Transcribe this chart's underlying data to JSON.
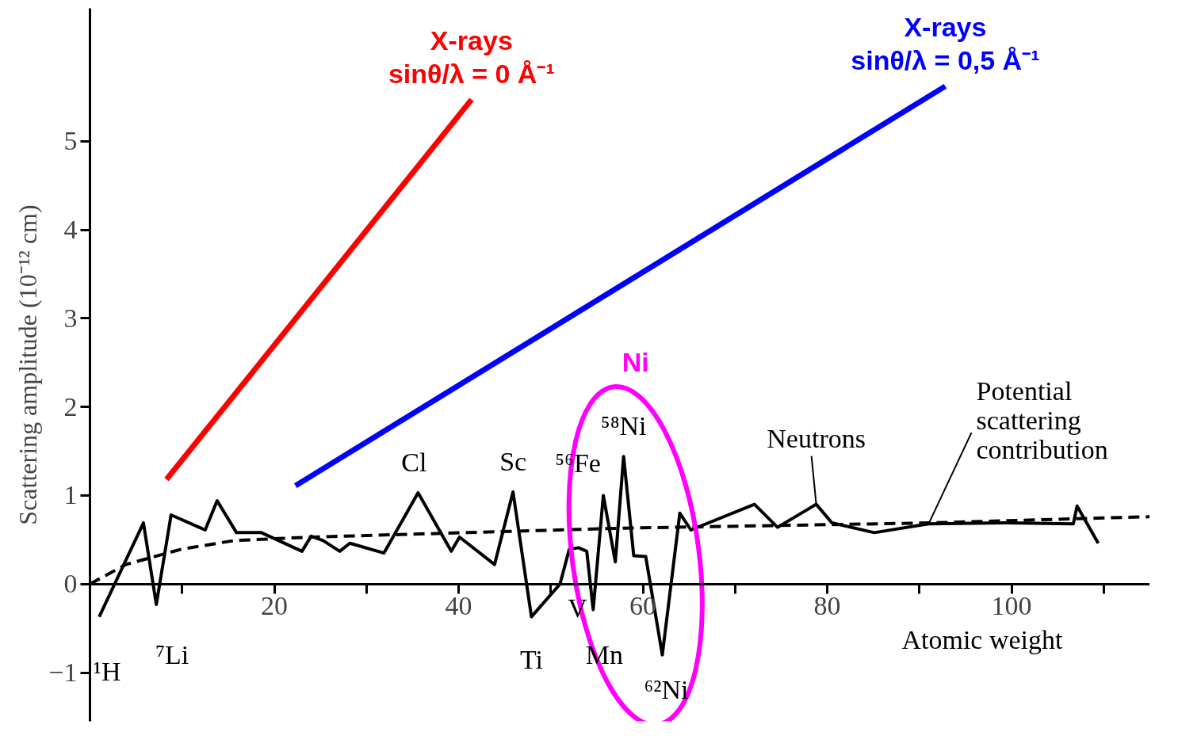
{
  "chart_data": {
    "type": "line",
    "ylabel": "Scattering amplitude (10⁻¹² cm)",
    "xlabel": "Atomic weight",
    "xlim": [
      0,
      115
    ],
    "ylim": [
      -1.55,
      6.5
    ],
    "xticks": [
      {
        "value": 10,
        "label": null
      },
      20,
      {
        "value": 30,
        "label": null
      },
      40,
      {
        "value": 50,
        "label": null
      },
      60,
      {
        "value": 70,
        "label": null
      },
      80,
      {
        "value": 90,
        "label": null
      },
      100,
      {
        "value": 110,
        "label": null
      }
    ],
    "yticks": [
      -1,
      0,
      1,
      2,
      3,
      4,
      5
    ],
    "grid": false,
    "marker": "none",
    "series": [
      {
        "name": "X-rays\nsinθ/λ = 0 Å⁻¹",
        "color": "#ff0000",
        "x": [
          8.3,
          41.4
        ],
        "values": [
          1.18,
          5.47
        ]
      },
      {
        "name": "X-rays\nsinθ/λ = 0,5 Å⁻¹",
        "color": "#0000ff",
        "x": [
          22.3,
          92.8
        ],
        "values": [
          1.11,
          5.62
        ]
      },
      {
        "color": "#000000",
        "line_style": "solid",
        "x": [
          1,
          5.8,
          7.2,
          8.8,
          12.5,
          13.8,
          15.9,
          18.6,
          23,
          24,
          25.3,
          27.1,
          28.2,
          31.9,
          35.6,
          39.2,
          40.1,
          43.9,
          45.9,
          47.9,
          51,
          52,
          53,
          53.9,
          54.6,
          55.7,
          57,
          57.9,
          59,
          60.3,
          62.1,
          64,
          65.2,
          72.1,
          74.6,
          78.8,
          80.5,
          85.1,
          91,
          99.3,
          106.7,
          107.1,
          109.4
        ],
        "values": [
          -0.37,
          0.69,
          -0.23,
          0.78,
          0.61,
          0.94,
          0.58,
          0.58,
          0.37,
          0.54,
          0.49,
          0.37,
          0.46,
          0.35,
          1.03,
          0.37,
          0.53,
          0.22,
          1.04,
          -0.37,
          0,
          0.39,
          0.41,
          0.37,
          -0.29,
          1.0,
          0.25,
          1.44,
          0.32,
          0.31,
          -0.8,
          0.8,
          0.61,
          0.9,
          0.64,
          0.9,
          0.69,
          0.58,
          0.68,
          0.69,
          0.68,
          0.88,
          0.46
        ]
      },
      {
        "color": "#000000",
        "line_style": "dashed",
        "x": [
          0,
          3.9,
          9.8,
          15.6,
          24,
          40.8,
          57.5,
          74.2,
          91,
          115
        ],
        "values": [
          0,
          0.22,
          0.39,
          0.49,
          0.53,
          0.58,
          0.63,
          0.66,
          0.69,
          0.76
        ]
      }
    ],
    "annotations": [
      {
        "text": "¹H",
        "x": 1,
        "y": -0.37
      },
      {
        "text": "⁷Li",
        "x": 7.2,
        "y": -0.23
      },
      {
        "text": "Cl",
        "x": 35.6,
        "y": 1.03
      },
      {
        "text": "Sc",
        "x": 45.9,
        "y": 1.04
      },
      {
        "text": "⁵⁶Fe",
        "x": 55.7,
        "y": 1.0
      },
      {
        "text": "⁵⁸Ni",
        "x": 57.9,
        "y": 1.44
      },
      {
        "text": "Ti",
        "x": 47.9,
        "y": -0.37
      },
      {
        "text": "V",
        "x": 51,
        "y": 0
      },
      {
        "text": "Mn",
        "x": 54.6,
        "y": -0.29
      },
      {
        "text": "⁶²Ni",
        "x": 62.1,
        "y": -0.8
      },
      {
        "text": "Neutrons",
        "x": 78.8,
        "y": 0.9
      },
      {
        "text": "Potential\nscattering\ncontribution",
        "x": 91,
        "y": 0.68
      },
      "Ni"
    ]
  }
}
